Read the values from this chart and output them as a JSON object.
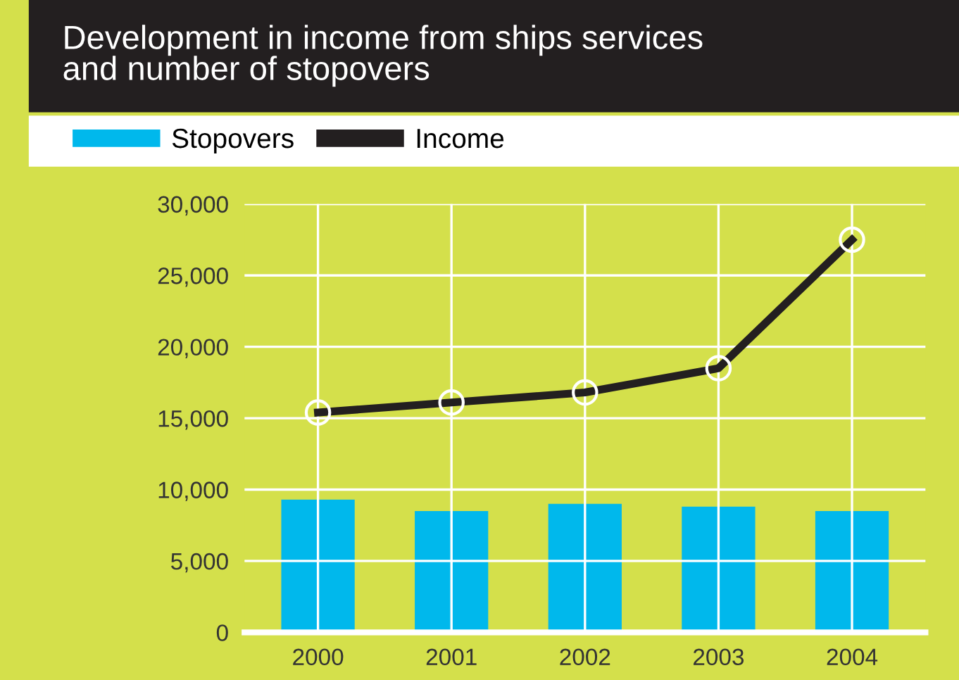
{
  "chart_data": {
    "type": "bar",
    "title": "Development in income from ships services\nand number of stopovers",
    "categories": [
      "2000",
      "2001",
      "2002",
      "2003",
      "2004"
    ],
    "series": [
      {
        "name": "Stopovers",
        "color": "#00b8ec",
        "values": [
          9300,
          8500,
          9000,
          8800,
          8500
        ]
      },
      {
        "name": "Income",
        "type": "line",
        "color": "#231f20",
        "values": [
          15400,
          16100,
          16800,
          18500,
          27500
        ]
      }
    ],
    "ylim": [
      0,
      30000
    ],
    "yticks": [
      {
        "value": 0,
        "label": "0"
      },
      {
        "value": 5000,
        "label": "5,000"
      },
      {
        "value": 10000,
        "label": "10,000"
      },
      {
        "value": 15000,
        "label": "15,000"
      },
      {
        "value": 20000,
        "label": "20,000"
      },
      {
        "value": 25000,
        "label": "25,000"
      },
      {
        "value": 30000,
        "label": "30,000"
      }
    ],
    "grid": true,
    "legend": "top left",
    "marker": "circle",
    "line_style": "solid"
  }
}
